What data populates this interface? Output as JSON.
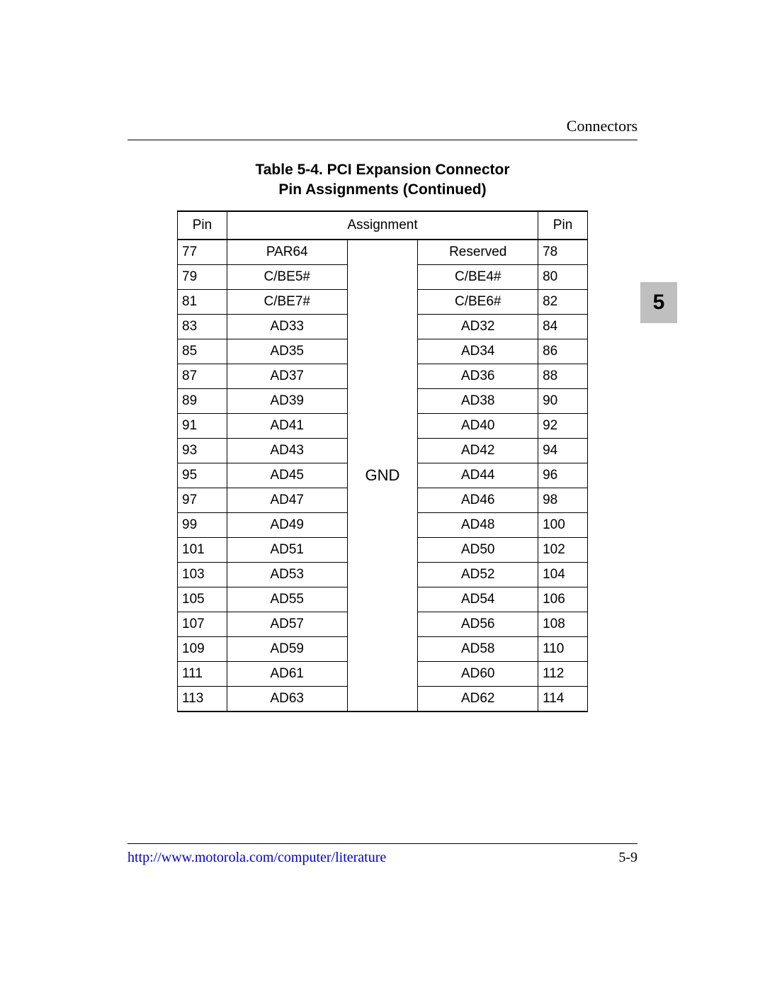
{
  "header": {
    "section": "Connectors"
  },
  "sideTab": {
    "label": "5",
    "background": "#bfbfbf",
    "textColor": "#000000"
  },
  "table": {
    "titleLine1": "Table 5-4.  PCI Expansion Connector",
    "titleLine2": "Pin Assignments (Continued)",
    "columns": {
      "pinLeft": "Pin",
      "assignment": "Assignment",
      "pinRight": "Pin"
    },
    "gndLabel": "GND",
    "rows": [
      {
        "pinL": "77",
        "asgL": "PAR64",
        "asgR": "Reserved",
        "pinR": "78"
      },
      {
        "pinL": "79",
        "asgL": "C/BE5#",
        "asgR": "C/BE4#",
        "pinR": "80"
      },
      {
        "pinL": "81",
        "asgL": "C/BE7#",
        "asgR": "C/BE6#",
        "pinR": "82"
      },
      {
        "pinL": "83",
        "asgL": "AD33",
        "asgR": "AD32",
        "pinR": "84"
      },
      {
        "pinL": "85",
        "asgL": "AD35",
        "asgR": "AD34",
        "pinR": "86"
      },
      {
        "pinL": "87",
        "asgL": "AD37",
        "asgR": "AD36",
        "pinR": "88"
      },
      {
        "pinL": "89",
        "asgL": "AD39",
        "asgR": "AD38",
        "pinR": "90"
      },
      {
        "pinL": "91",
        "asgL": "AD41",
        "asgR": "AD40",
        "pinR": "92"
      },
      {
        "pinL": "93",
        "asgL": "AD43",
        "asgR": "AD42",
        "pinR": "94"
      },
      {
        "pinL": "95",
        "asgL": "AD45",
        "asgR": "AD44",
        "pinR": "96"
      },
      {
        "pinL": "97",
        "asgL": "AD47",
        "asgR": "AD46",
        "pinR": "98"
      },
      {
        "pinL": "99",
        "asgL": "AD49",
        "asgR": "AD48",
        "pinR": "100"
      },
      {
        "pinL": "101",
        "asgL": "AD51",
        "asgR": "AD50",
        "pinR": "102"
      },
      {
        "pinL": "103",
        "asgL": "AD53",
        "asgR": "AD52",
        "pinR": "104"
      },
      {
        "pinL": "105",
        "asgL": "AD55",
        "asgR": "AD54",
        "pinR": "106"
      },
      {
        "pinL": "107",
        "asgL": "AD57",
        "asgR": "AD56",
        "pinR": "108"
      },
      {
        "pinL": "109",
        "asgL": "AD59",
        "asgR": "AD58",
        "pinR": "110"
      },
      {
        "pinL": "111",
        "asgL": "AD61",
        "asgR": "AD60",
        "pinR": "112"
      },
      {
        "pinL": "113",
        "asgL": "AD63",
        "asgR": "AD62",
        "pinR": "114"
      }
    ],
    "style": {
      "borderColor": "#000000",
      "fontFamilyHeader": "Arial",
      "fontFamilyBody": "Arial",
      "fontSizeBody": 19,
      "fontSizeGnd": 22,
      "outerBorderTopBottomPx": 2,
      "outerBorderLeftRightPx": 1,
      "colWidthsPx": {
        "pinL": 70,
        "asgL": 170,
        "gnd": 100,
        "asgR": 170,
        "pinR": 70
      }
    }
  },
  "footer": {
    "linkText": "http://www.motorola.com/computer/literature",
    "linkColor": "#0000cc",
    "pageNumber": "5-9"
  },
  "page": {
    "widthPx": 1080,
    "heightPx": 1397,
    "background": "#ffffff"
  }
}
